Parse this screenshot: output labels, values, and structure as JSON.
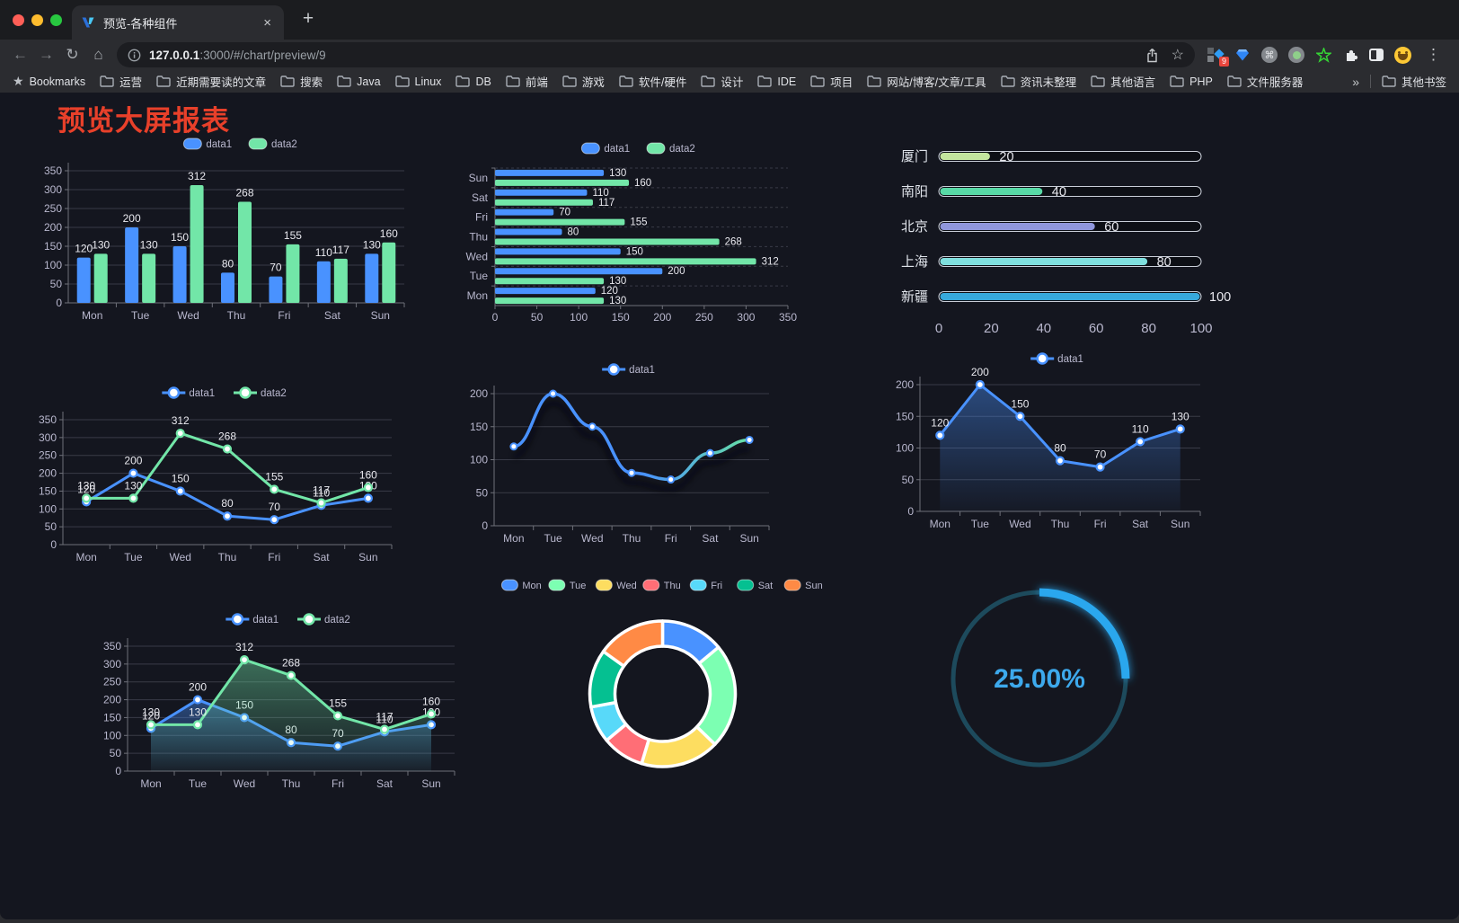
{
  "browser": {
    "tab": {
      "title": "预览-各种组件"
    },
    "address": {
      "host": "127.0.0.1",
      "path": ":3000/#/chart/preview/9"
    },
    "extensions_badge": "9",
    "bookmarks_label": "Bookmarks",
    "bookmarks": [
      "运营",
      "近期需要读的文章",
      "搜索",
      "Java",
      "Linux",
      "DB",
      "前端",
      "游戏",
      "软件/硬件",
      "设计",
      "IDE",
      "项目",
      "网站/博客/文章/工具",
      "资讯未整理",
      "其他语言",
      "PHP",
      "文件服务器"
    ],
    "other_bookmarks": "其他书签"
  },
  "icons": {
    "close": "×",
    "new_tab": "+",
    "back": "←",
    "forward": "→",
    "reload": "↻",
    "home": "⌂",
    "star_outline": "☆",
    "bookmarks_star": "★",
    "command": "⌘",
    "more": "⋮",
    "overflow": "»"
  },
  "page": {
    "title": "预览大屏报表"
  },
  "theme": {
    "page_bg": "#14161f",
    "title_red": "#e8402a",
    "accent_blue": "#4992ff",
    "accent_green": "#72e6a8",
    "axis_text": "#b9b8ce",
    "grid_line": "#393b47",
    "axis_line": "#6e7079",
    "value_label": "#e8e8ee"
  },
  "chart_data": [
    {
      "id": "bar-grouped",
      "type": "bar",
      "categories": [
        "Mon",
        "Tue",
        "Wed",
        "Thu",
        "Fri",
        "Sat",
        "Sun"
      ],
      "series": [
        {
          "name": "data1",
          "color": "#4992ff",
          "values": [
            120,
            200,
            150,
            80,
            70,
            110,
            130
          ]
        },
        {
          "name": "data2",
          "color": "#72e6a8",
          "values": [
            130,
            130,
            312,
            268,
            155,
            117,
            160
          ]
        }
      ],
      "ylim": [
        0,
        350
      ],
      "ytick_step": 50,
      "legend_position": "top",
      "grid": true
    },
    {
      "id": "hbar-grouped",
      "type": "hbar",
      "categories": [
        "Mon",
        "Tue",
        "Wed",
        "Thu",
        "Fri",
        "Sat",
        "Sun"
      ],
      "series": [
        {
          "name": "data1",
          "color": "#4992ff",
          "values": [
            120,
            200,
            150,
            80,
            70,
            110,
            130
          ]
        },
        {
          "name": "data2",
          "color": "#72e6a8",
          "values": [
            130,
            130,
            312,
            268,
            155,
            117,
            160
          ]
        }
      ],
      "xlim": [
        0,
        350
      ],
      "xtick_step": 50,
      "legend_position": "top"
    },
    {
      "id": "progress-bars",
      "type": "bar",
      "orientation": "horizontal-progress",
      "rows": [
        {
          "label": "厦门",
          "value": 20,
          "color": "#c3e59e"
        },
        {
          "label": "南阳",
          "value": 40,
          "color": "#58d9a6"
        },
        {
          "label": "北京",
          "value": 60,
          "color": "#9097dd"
        },
        {
          "label": "上海",
          "value": 80,
          "color": "#7fdfde"
        },
        {
          "label": "新疆",
          "value": 100,
          "color": "#37a9dc"
        }
      ],
      "xlim": [
        0,
        100
      ],
      "xticks": [
        0,
        20,
        40,
        60,
        80,
        100
      ]
    },
    {
      "id": "line-two",
      "type": "line",
      "categories": [
        "Mon",
        "Tue",
        "Wed",
        "Thu",
        "Fri",
        "Sat",
        "Sun"
      ],
      "series": [
        {
          "name": "data1",
          "color": "#4992ff",
          "values": [
            120,
            200,
            150,
            80,
            70,
            110,
            130
          ]
        },
        {
          "name": "data2",
          "color": "#72e6a8",
          "values": [
            130,
            130,
            312,
            268,
            155,
            117,
            160
          ]
        }
      ],
      "ylim": [
        0,
        350
      ],
      "ytick_step": 50,
      "labels": true,
      "area": false,
      "plot_top": 46,
      "x0": 40,
      "legend_y": 16
    },
    {
      "id": "line-gradient",
      "type": "gradline",
      "categories": [
        "Mon",
        "Tue",
        "Wed",
        "Thu",
        "Fri",
        "Sat",
        "Sun"
      ],
      "series": [
        {
          "name": "data1",
          "color": "#4992ff",
          "values": [
            120,
            200,
            150,
            80,
            70,
            110,
            130
          ]
        }
      ],
      "gradient": [
        "#4992ff",
        "#66e0a3"
      ],
      "ylim": [
        0,
        200
      ],
      "ytick_step": 50,
      "legend_y": 11
    },
    {
      "id": "line-area",
      "type": "line",
      "categories": [
        "Mon",
        "Tue",
        "Wed",
        "Thu",
        "Fri",
        "Sat",
        "Sun"
      ],
      "series": [
        {
          "name": "data1",
          "color": "#4992ff",
          "values": [
            120,
            200,
            150,
            80,
            70,
            110,
            130
          ]
        }
      ],
      "ylim": [
        0,
        200
      ],
      "ytick_step": 50,
      "labels": true,
      "area": true,
      "plot_top": 38,
      "x0": 42,
      "legend_y": 9
    },
    {
      "id": "line-area-two",
      "type": "line",
      "categories": [
        "Mon",
        "Tue",
        "Wed",
        "Thu",
        "Fri",
        "Sat",
        "Sun"
      ],
      "series": [
        {
          "name": "data1",
          "color": "#4992ff",
          "values": [
            120,
            200,
            150,
            80,
            70,
            110,
            130
          ]
        },
        {
          "name": "data2",
          "color": "#72e6a8",
          "values": [
            130,
            130,
            312,
            268,
            155,
            117,
            160
          ]
        }
      ],
      "ylim": [
        0,
        350
      ],
      "ytick_step": 50,
      "labels": true,
      "area": true,
      "plot_top": 46,
      "x0": 34,
      "legend_y": 16
    },
    {
      "id": "donut",
      "type": "pie",
      "inner_radius": 53,
      "outer_radius": 81,
      "items": [
        {
          "name": "Mon",
          "value": 120,
          "color": "#4992ff"
        },
        {
          "name": "Tue",
          "value": 200,
          "color": "#7cffb2"
        },
        {
          "name": "Wed",
          "value": 150,
          "color": "#fddd60"
        },
        {
          "name": "Thu",
          "value": 80,
          "color": "#ff6e76"
        },
        {
          "name": "Fri",
          "value": 70,
          "color": "#58d9f9"
        },
        {
          "name": "Sat",
          "value": 110,
          "color": "#05c091"
        },
        {
          "name": "Sun",
          "value": 130,
          "color": "#ff8a45"
        }
      ]
    },
    {
      "id": "gauge",
      "type": "gauge",
      "value": 25,
      "label": "25.00%",
      "color": "#2aa7ee",
      "track_color": "#1d4a5c",
      "text_color": "#3da9ec"
    }
  ]
}
